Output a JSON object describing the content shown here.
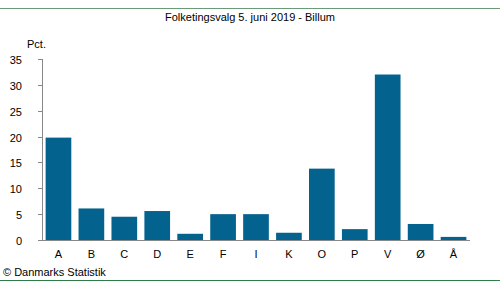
{
  "chart_data": {
    "type": "bar",
    "title": "Folketingsvalg 5. juni 2019 - Billum",
    "y_label": "Pct.",
    "source": "© Danmarks Statistik",
    "categories": [
      "A",
      "B",
      "C",
      "D",
      "E",
      "F",
      "I",
      "K",
      "O",
      "P",
      "V",
      "Ø",
      "Å"
    ],
    "values": [
      19.8,
      6.1,
      4.5,
      5.6,
      1.2,
      5.0,
      5.0,
      1.4,
      13.8,
      2.1,
      32.0,
      3.1,
      0.6
    ],
    "color": "#04628f",
    "ylim": [
      0,
      35
    ],
    "yticks": [
      0,
      5,
      10,
      15,
      20,
      25,
      30,
      35
    ],
    "grid": false
  }
}
